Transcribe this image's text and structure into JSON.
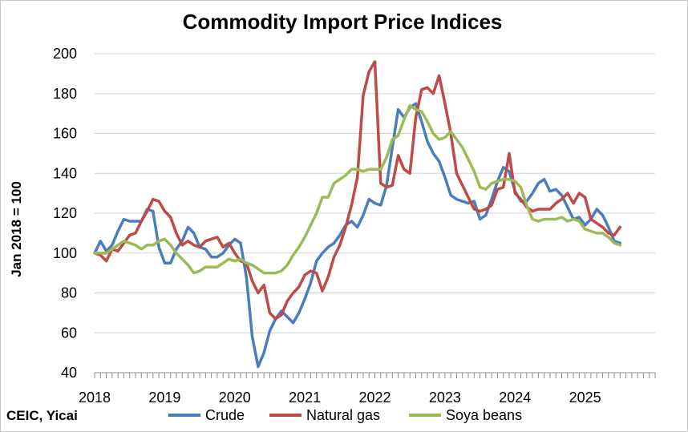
{
  "chart_data": {
    "type": "line",
    "title": "Commodity Import Price Indices",
    "ylabel": "Jan 2018 = 100",
    "xlabel": "",
    "source": "CEIC, Yicai",
    "ylim": [
      40,
      200
    ],
    "yticks": [
      40,
      60,
      80,
      100,
      120,
      140,
      160,
      180,
      200
    ],
    "x_tick_labels": [
      "2018",
      "2019",
      "2020",
      "2021",
      "2022",
      "2023",
      "2024",
      "2025"
    ],
    "x_start": "2018-01",
    "x_end": "2025-12",
    "grid": "horizontal",
    "legend_position": "bottom",
    "series": [
      {
        "name": "Crude",
        "color": "#4a7ebb",
        "values": [
          100,
          106,
          101,
          104,
          111,
          117,
          116,
          116,
          116,
          122,
          121,
          103,
          95,
          95,
          102,
          106,
          113,
          110,
          103,
          102,
          98,
          98,
          100,
          104,
          107,
          105,
          88,
          58,
          43,
          50,
          61,
          67,
          71,
          68,
          65,
          70,
          77,
          85,
          96,
          100,
          103,
          105,
          109,
          114,
          116,
          113,
          119,
          127,
          125,
          124,
          134,
          153,
          172,
          168,
          173,
          175,
          166,
          156,
          150,
          146,
          138,
          129,
          127,
          126,
          125,
          126,
          117,
          119,
          127,
          136,
          143,
          141,
          131,
          126,
          126,
          130,
          135,
          137,
          131,
          132,
          129,
          123,
          117,
          118,
          114,
          117,
          122,
          119,
          113,
          106,
          105
        ]
      },
      {
        "name": "Natural gas",
        "color": "#be4b48",
        "values": [
          100,
          99,
          96,
          102,
          101,
          105,
          109,
          110,
          116,
          121,
          127,
          126,
          121,
          118,
          110,
          104,
          106,
          104,
          103,
          106,
          107,
          108,
          103,
          105,
          100,
          96,
          95,
          86,
          80,
          84,
          70,
          67,
          69,
          76,
          80,
          83,
          89,
          91,
          90,
          81,
          88,
          98,
          104,
          113,
          124,
          138,
          179,
          191,
          196,
          135,
          133,
          134,
          149,
          142,
          140,
          168,
          182,
          183,
          180,
          189,
          175,
          160,
          140,
          134,
          128,
          122,
          121,
          122,
          124,
          132,
          133,
          150,
          130,
          127,
          123,
          121,
          122,
          122,
          122,
          125,
          127,
          130,
          125,
          130,
          128,
          117,
          115,
          113,
          110,
          109,
          113
        ]
      },
      {
        "name": "Soya beans",
        "color": "#9bbb59",
        "values": [
          100,
          100,
          100,
          102,
          104,
          106,
          105,
          104,
          102,
          104,
          104,
          106,
          107,
          104,
          100,
          97,
          94,
          90,
          91,
          93,
          93,
          93,
          95,
          97,
          96,
          97,
          95,
          94,
          92,
          90,
          90,
          90,
          91,
          94,
          99,
          103,
          108,
          114,
          120,
          128,
          128,
          135,
          137,
          139,
          142,
          142,
          141,
          142,
          142,
          142,
          148,
          157,
          159,
          167,
          174,
          172,
          171,
          166,
          160,
          157,
          158,
          161,
          157,
          153,
          147,
          141,
          133,
          132,
          135,
          136,
          137,
          137,
          136,
          133,
          124,
          117,
          116,
          117,
          117,
          117,
          118,
          116,
          117,
          116,
          112,
          111,
          110,
          110,
          108,
          105,
          104
        ]
      }
    ]
  }
}
